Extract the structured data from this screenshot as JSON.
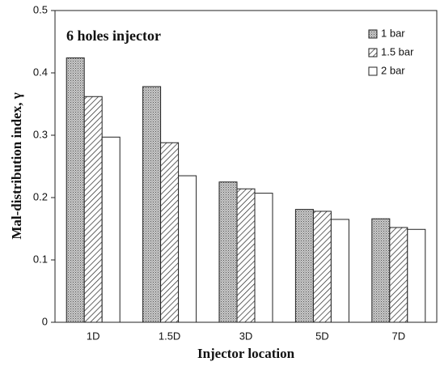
{
  "chart_data": {
    "type": "bar",
    "title": "6 holes injector",
    "xlabel": "Injector location",
    "ylabel": "Mal-distribution index, γ",
    "categories": [
      "1D",
      "1.5D",
      "3D",
      "5D",
      "7D"
    ],
    "series": [
      {
        "name": "1 bar",
        "color": "#b0b0b0",
        "pattern": "dots",
        "values": [
          0.424,
          0.378,
          0.225,
          0.181,
          0.166
        ]
      },
      {
        "name": "1.5 bar",
        "color": "#ffffff",
        "pattern": "hatch",
        "values": [
          0.362,
          0.288,
          0.214,
          0.178,
          0.152
        ]
      },
      {
        "name": "2 bar",
        "color": "#ffffff",
        "pattern": "none",
        "values": [
          0.297,
          0.235,
          0.207,
          0.165,
          0.149
        ]
      }
    ],
    "ylim": [
      0,
      0.5
    ],
    "yticks": [
      0,
      0.1,
      0.2,
      0.3,
      0.4,
      0.5
    ],
    "legend": "upper right"
  }
}
